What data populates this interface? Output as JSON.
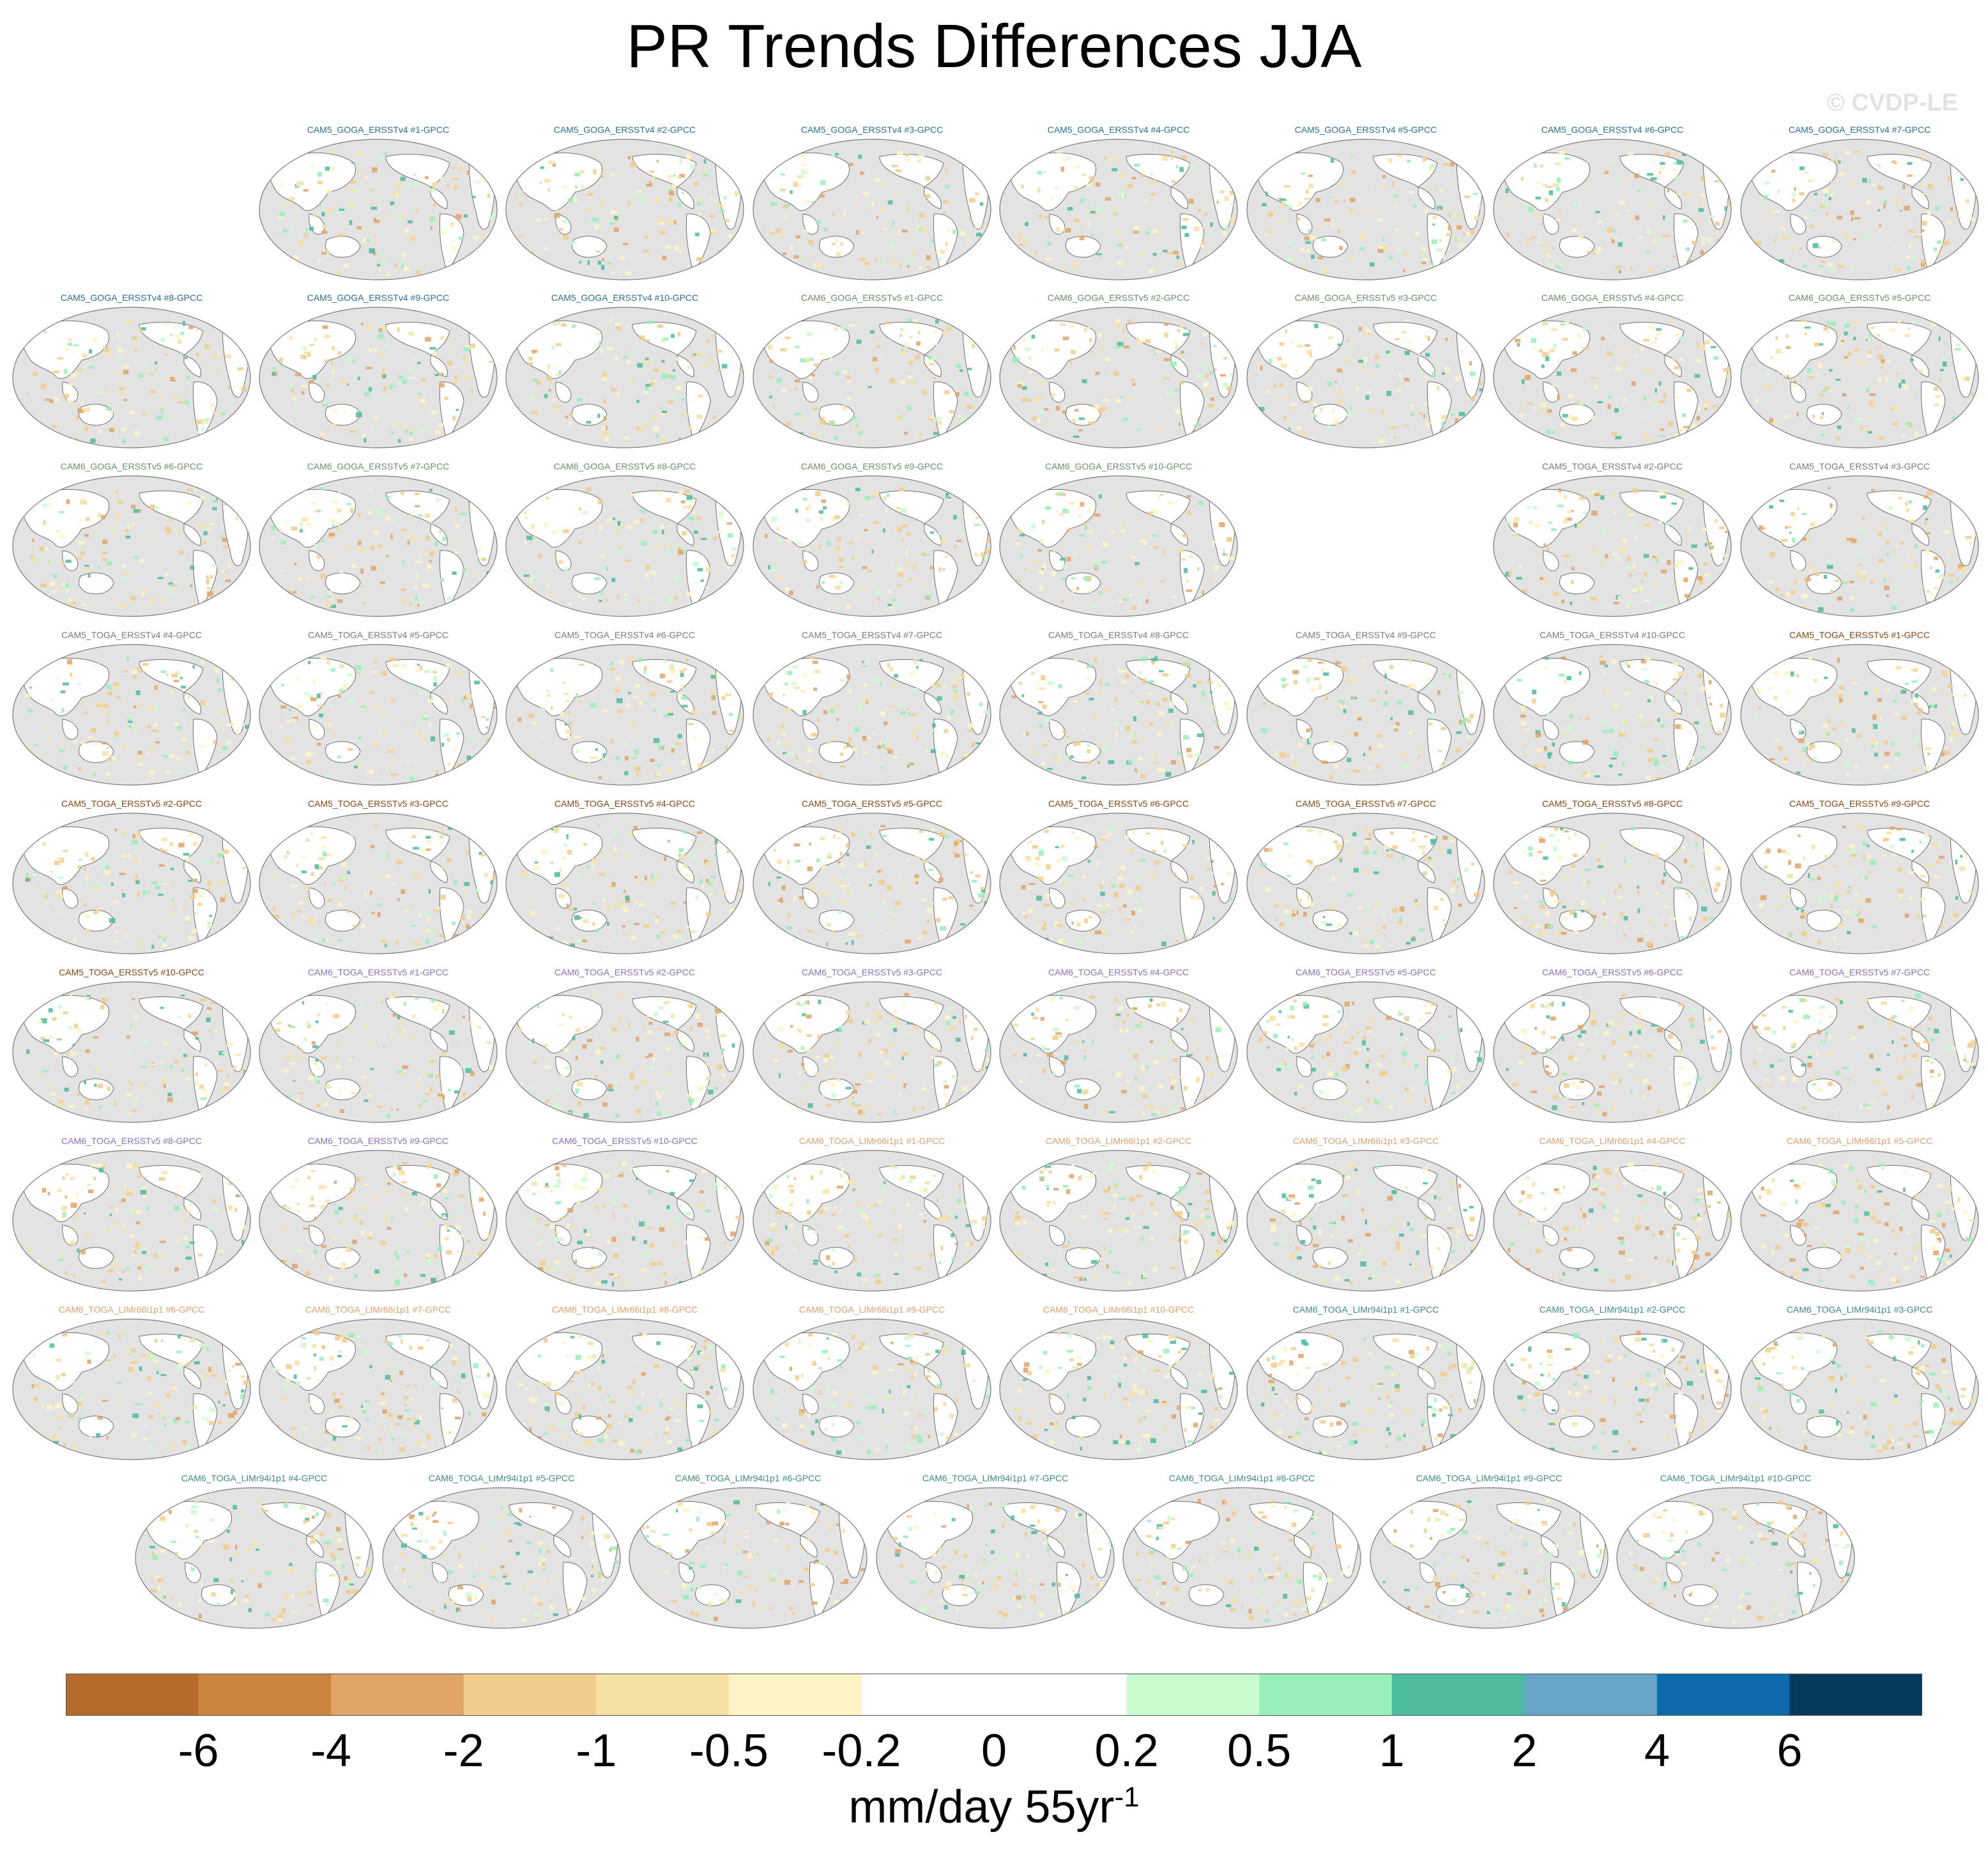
{
  "title": "PR Trends Differences JJA",
  "credit": "© CVDP-LE",
  "units": {
    "main": "mm/day 55yr",
    "exponent": "-1"
  },
  "colorbar": {
    "colors": [
      "#b46b2b",
      "#cb853f",
      "#e0a566",
      "#f2cc8a",
      "#f4e2a4",
      "#fdf4c6",
      "#ffffff",
      "#ffffff",
      "#c9fbce",
      "#99efbb",
      "#4dbb9f",
      "#67a5c7",
      "#0b6aa7",
      "#033a5a"
    ],
    "tick_labels": [
      "-6",
      "-4",
      "-2",
      "-1",
      "-0.5",
      "-0.2",
      "0",
      "0.2",
      "0.5",
      "1",
      "2",
      "4",
      "6"
    ]
  },
  "chart_data": {
    "type": "heatmap",
    "title": "PR Trends Differences JJA",
    "variable": "PR",
    "season": "JJA",
    "units": "mm/day 55yr-1",
    "levels": [
      -6,
      -4,
      -2,
      -1,
      -0.5,
      -0.2,
      0,
      0.2,
      0.5,
      1,
      2,
      4,
      6
    ],
    "panels": [
      {
        "label": "CAM5_GOGA_ERSSTv4 #1-GPCC",
        "color": "#2a6f97"
      },
      {
        "label": "CAM5_GOGA_ERSSTv4 #2-GPCC",
        "color": "#2a6f97"
      },
      {
        "label": "CAM5_GOGA_ERSSTv4 #3-GPCC",
        "color": "#2a6f97"
      },
      {
        "label": "CAM5_GOGA_ERSSTv4 #4-GPCC",
        "color": "#2a6f97"
      },
      {
        "label": "CAM5_GOGA_ERSSTv4 #5-GPCC",
        "color": "#2a6f97"
      },
      {
        "label": "CAM5_GOGA_ERSSTv4 #6-GPCC",
        "color": "#2a6f97"
      },
      {
        "label": "CAM5_GOGA_ERSSTv4 #7-GPCC",
        "color": "#2a6f97"
      },
      {
        "label": "CAM5_GOGA_ERSSTv4 #8-GPCC",
        "color": "#2a6f97"
      },
      {
        "label": "CAM5_GOGA_ERSSTv4 #9-GPCC",
        "color": "#2a6f97"
      },
      {
        "label": "CAM5_GOGA_ERSSTv4 #10-GPCC",
        "color": "#2a6f97"
      },
      {
        "label": "CAM6_GOGA_ERSSTv5 #1-GPCC",
        "color": "#6b8e6b"
      },
      {
        "label": "CAM6_GOGA_ERSSTv5 #2-GPCC",
        "color": "#6b8e6b"
      },
      {
        "label": "CAM6_GOGA_ERSSTv5 #3-GPCC",
        "color": "#6b8e6b"
      },
      {
        "label": "CAM6_GOGA_ERSSTv5 #4-GPCC",
        "color": "#6b8e6b"
      },
      {
        "label": "CAM6_GOGA_ERSSTv5 #5-GPCC",
        "color": "#6b8e6b"
      },
      {
        "label": "CAM6_GOGA_ERSSTv5 #6-GPCC",
        "color": "#6b8e6b"
      },
      {
        "label": "CAM6_GOGA_ERSSTv5 #7-GPCC",
        "color": "#6b8e6b"
      },
      {
        "label": "CAM6_GOGA_ERSSTv5 #8-GPCC",
        "color": "#6b8e6b"
      },
      {
        "label": "CAM6_GOGA_ERSSTv5 #9-GPCC",
        "color": "#6b8e6b"
      },
      {
        "label": "CAM6_GOGA_ERSSTv5 #10-GPCC",
        "color": "#6b8e6b"
      },
      {
        "label": "CAM5_TOGA_ERSSTv4 #2-GPCC",
        "color": "#7a7a7a"
      },
      {
        "label": "CAM5_TOGA_ERSSTv4 #3-GPCC",
        "color": "#7a7a7a"
      },
      {
        "label": "CAM5_TOGA_ERSSTv4 #4-GPCC",
        "color": "#7a7a7a"
      },
      {
        "label": "CAM5_TOGA_ERSSTv4 #5-GPCC",
        "color": "#7a7a7a"
      },
      {
        "label": "CAM5_TOGA_ERSSTv4 #6-GPCC",
        "color": "#7a7a7a"
      },
      {
        "label": "CAM5_TOGA_ERSSTv4 #7-GPCC",
        "color": "#7a7a7a"
      },
      {
        "label": "CAM5_TOGA_ERSSTv4 #8-GPCC",
        "color": "#7a7a7a"
      },
      {
        "label": "CAM5_TOGA_ERSSTv4 #9-GPCC",
        "color": "#7a7a7a"
      },
      {
        "label": "CAM5_TOGA_ERSSTv4 #10-GPCC",
        "color": "#7a7a7a"
      },
      {
        "label": "CAM5_TOGA_ERSSTv5 #1-GPCC",
        "color": "#8b4513"
      },
      {
        "label": "CAM5_TOGA_ERSSTv5 #2-GPCC",
        "color": "#8b4513"
      },
      {
        "label": "CAM5_TOGA_ERSSTv5 #3-GPCC",
        "color": "#8b4513"
      },
      {
        "label": "CAM5_TOGA_ERSSTv5 #4-GPCC",
        "color": "#8b4513"
      },
      {
        "label": "CAM5_TOGA_ERSSTv5 #5-GPCC",
        "color": "#8b4513"
      },
      {
        "label": "CAM5_TOGA_ERSSTv5 #6-GPCC",
        "color": "#8b4513"
      },
      {
        "label": "CAM5_TOGA_ERSSTv5 #7-GPCC",
        "color": "#8b4513"
      },
      {
        "label": "CAM5_TOGA_ERSSTv5 #8-GPCC",
        "color": "#8b4513"
      },
      {
        "label": "CAM5_TOGA_ERSSTv5 #9-GPCC",
        "color": "#8b4513"
      },
      {
        "label": "CAM5_TOGA_ERSSTv5 #10-GPCC",
        "color": "#8b4513"
      },
      {
        "label": "CAM6_TOGA_ERSSTv5 #1-GPCC",
        "color": "#8a6fc6"
      },
      {
        "label": "CAM6_TOGA_ERSSTv5 #2-GPCC",
        "color": "#8a6fc6"
      },
      {
        "label": "CAM6_TOGA_ERSSTv5 #3-GPCC",
        "color": "#8a6fc6"
      },
      {
        "label": "CAM6_TOGA_ERSSTv5 #4-GPCC",
        "color": "#8a6fc6"
      },
      {
        "label": "CAM6_TOGA_ERSSTv5 #5-GPCC",
        "color": "#8a6fc6"
      },
      {
        "label": "CAM6_TOGA_ERSSTv5 #6-GPCC",
        "color": "#8a6fc6"
      },
      {
        "label": "CAM6_TOGA_ERSSTv5 #7-GPCC",
        "color": "#8a6fc6"
      },
      {
        "label": "CAM6_TOGA_ERSSTv5 #8-GPCC",
        "color": "#8a6fc6"
      },
      {
        "label": "CAM6_TOGA_ERSSTv5 #9-GPCC",
        "color": "#8a6fc6"
      },
      {
        "label": "CAM6_TOGA_ERSSTv5 #10-GPCC",
        "color": "#8a6fc6"
      },
      {
        "label": "CAM6_TOGA_LIMr66i1p1 #1-GPCC",
        "color": "#e0a070"
      },
      {
        "label": "CAM6_TOGA_LIMr66i1p1 #2-GPCC",
        "color": "#e0a070"
      },
      {
        "label": "CAM6_TOGA_LIMr66i1p1 #3-GPCC",
        "color": "#e0a070"
      },
      {
        "label": "CAM6_TOGA_LIMr66i1p1 #4-GPCC",
        "color": "#e0a070"
      },
      {
        "label": "CAM6_TOGA_LIMr66i1p1 #5-GPCC",
        "color": "#e0a070"
      },
      {
        "label": "CAM6_TOGA_LIMr66i1p1 #6-GPCC",
        "color": "#e0a070"
      },
      {
        "label": "CAM6_TOGA_LIMr66i1p1 #7-GPCC",
        "color": "#e0a070"
      },
      {
        "label": "CAM6_TOGA_LIMr66i1p1 #8-GPCC",
        "color": "#e0a070"
      },
      {
        "label": "CAM6_TOGA_LIMr66i1p1 #9-GPCC",
        "color": "#e0a070"
      },
      {
        "label": "CAM6_TOGA_LIMr66i1p1 #10-GPCC",
        "color": "#e0a070"
      },
      {
        "label": "CAM6_TOGA_LIMr94i1p1 #1-GPCC",
        "color": "#3f8a8a"
      },
      {
        "label": "CAM6_TOGA_LIMr94i1p1 #2-GPCC",
        "color": "#3f8a8a"
      },
      {
        "label": "CAM6_TOGA_LIMr94i1p1 #3-GPCC",
        "color": "#3f8a8a"
      },
      {
        "label": "CAM6_TOGA_LIMr94i1p1 #4-GPCC",
        "color": "#3f8a8a"
      },
      {
        "label": "CAM6_TOGA_LIMr94i1p1 #5-GPCC",
        "color": "#3f8a8a"
      },
      {
        "label": "CAM6_TOGA_LIMr94i1p1 #6-GPCC",
        "color": "#3f8a8a"
      },
      {
        "label": "CAM6_TOGA_LIMr94i1p1 #7-GPCC",
        "color": "#3f8a8a"
      },
      {
        "label": "CAM6_TOGA_LIMr94i1p1 #8-GPCC",
        "color": "#3f8a8a"
      },
      {
        "label": "CAM6_TOGA_LIMr94i1p1 #9-GPCC",
        "color": "#3f8a8a"
      },
      {
        "label": "CAM6_TOGA_LIMr94i1p1 #10-GPCC",
        "color": "#3f8a8a"
      }
    ]
  }
}
